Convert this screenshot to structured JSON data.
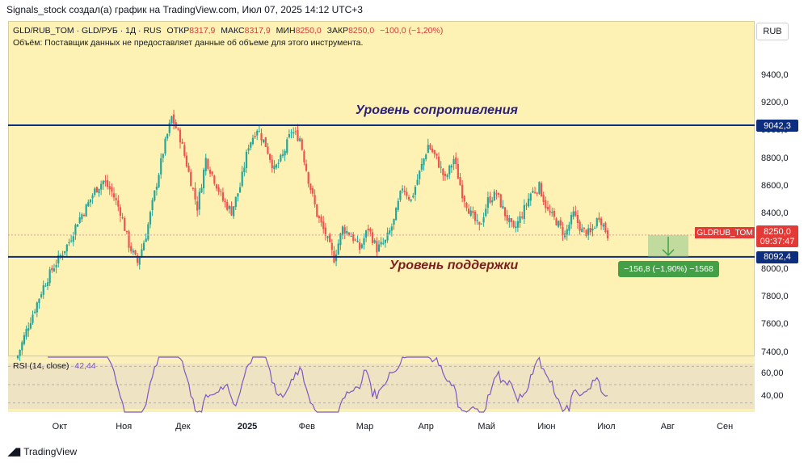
{
  "header": {
    "caption": "Signals_stock создал(а) график на TradingView.com, Июл 07, 2025 14:12 UTC+3"
  },
  "legend": {
    "symbol": "GLD/RUB_TOM · GLD/РУБ · 1Д · RUS",
    "open_label": "ОТКР",
    "open": "8317,9",
    "high_label": "МАКС",
    "high": "8317,9",
    "low_label": "МИН",
    "low": "8250,0",
    "close_label": "ЗАКР",
    "close": "8250,0",
    "change": "−100,0 (−1,20%)",
    "volume_note": "Объём: Поставщик данных не предоставляет данные об объеме для этого инструмента."
  },
  "currency_button": "RUB",
  "price_tag": {
    "symbol": "GLDRUB_TOM",
    "price": "8250,0",
    "countdown": "09:37:47"
  },
  "levels": {
    "resistance": {
      "value": 9042.3,
      "label": "9042,3",
      "annotation": "Уровень сопротивления"
    },
    "support": {
      "value": 8092.4,
      "label": "8092,4",
      "annotation": "Уровень поддержки"
    }
  },
  "measure": {
    "label": "−156,8 (−1,90%) −1568"
  },
  "rsi": {
    "label": "RSI (14, close)",
    "value": "42,44",
    "upper": 70,
    "lower": 30,
    "ticks": [
      "60,00",
      "40,00"
    ]
  },
  "footer": {
    "brand": "TradingView"
  },
  "colors": {
    "up": "#26a69a",
    "down": "#ef5350",
    "level_line": "#0d2e7f",
    "rsi_line": "#7e57c2",
    "chart_bg": "#fdf2b4"
  },
  "chart_data": {
    "type": "candlestick",
    "title": "GLD/RUB_TOM · GLD/РУБ · 1Д · RUS",
    "y_ticks": [
      {
        "value": 7400,
        "label": "7400,0"
      },
      {
        "value": 7600,
        "label": "7600,0"
      },
      {
        "value": 7800,
        "label": "7800,0"
      },
      {
        "value": 8000,
        "label": "8000,0"
      },
      {
        "value": 8200,
        "label": "8200,0"
      },
      {
        "value": 8400,
        "label": "8400,0"
      },
      {
        "value": 8600,
        "label": "8600,0"
      },
      {
        "value": 8800,
        "label": "8800,0"
      },
      {
        "value": 9000,
        "label": "9000,0"
      },
      {
        "value": 9200,
        "label": "9200,0"
      },
      {
        "value": 9400,
        "label": "9400,0"
      }
    ],
    "ylim": [
      7380,
      9620
    ],
    "x_ticks": [
      {
        "label": "Окт",
        "pos": 0.07,
        "bold": false
      },
      {
        "label": "Ноя",
        "pos": 0.155,
        "bold": false
      },
      {
        "label": "Дек",
        "pos": 0.235,
        "bold": false
      },
      {
        "label": "2025",
        "pos": 0.318,
        "bold": true
      },
      {
        "label": "Фев",
        "pos": 0.4,
        "bold": false
      },
      {
        "label": "Мар",
        "pos": 0.477,
        "bold": false
      },
      {
        "label": "Апр",
        "pos": 0.56,
        "bold": false
      },
      {
        "label": "Май",
        "pos": 0.64,
        "bold": false
      },
      {
        "label": "Июн",
        "pos": 0.72,
        "bold": false
      },
      {
        "label": "Июл",
        "pos": 0.8,
        "bold": false
      },
      {
        "label": "Авг",
        "pos": 0.885,
        "bold": false
      },
      {
        "label": "Сен",
        "pos": 0.96,
        "bold": false
      }
    ],
    "close_path": [
      [
        0,
        7380
      ],
      [
        4,
        7560
      ],
      [
        8,
        7720
      ],
      [
        12,
        7880
      ],
      [
        16,
        8000
      ],
      [
        20,
        8100
      ],
      [
        24,
        8200
      ],
      [
        28,
        8350
      ],
      [
        32,
        8450
      ],
      [
        36,
        8570
      ],
      [
        40,
        8640
      ],
      [
        44,
        8560
      ],
      [
        48,
        8420
      ],
      [
        52,
        8180
      ],
      [
        56,
        8050
      ],
      [
        60,
        8250
      ],
      [
        64,
        8550
      ],
      [
        68,
        8850
      ],
      [
        72,
        9100
      ],
      [
        76,
        8950
      ],
      [
        80,
        8700
      ],
      [
        84,
        8450
      ],
      [
        88,
        8800
      ],
      [
        92,
        8650
      ],
      [
        96,
        8500
      ],
      [
        100,
        8420
      ],
      [
        104,
        8600
      ],
      [
        108,
        8900
      ],
      [
        112,
        9020
      ],
      [
        116,
        8900
      ],
      [
        120,
        8720
      ],
      [
        124,
        8820
      ],
      [
        128,
        9000
      ],
      [
        132,
        8950
      ],
      [
        136,
        8650
      ],
      [
        140,
        8400
      ],
      [
        144,
        8250
      ],
      [
        148,
        8080
      ],
      [
        152,
        8300
      ],
      [
        156,
        8250
      ],
      [
        160,
        8150
      ],
      [
        164,
        8300
      ],
      [
        168,
        8150
      ],
      [
        172,
        8200
      ],
      [
        176,
        8350
      ],
      [
        180,
        8600
      ],
      [
        184,
        8500
      ],
      [
        188,
        8700
      ],
      [
        192,
        8900
      ],
      [
        196,
        8800
      ],
      [
        200,
        8650
      ],
      [
        204,
        8800
      ],
      [
        208,
        8550
      ],
      [
        212,
        8400
      ],
      [
        216,
        8300
      ],
      [
        220,
        8500
      ],
      [
        224,
        8550
      ],
      [
        228,
        8400
      ],
      [
        232,
        8280
      ],
      [
        236,
        8400
      ],
      [
        240,
        8550
      ],
      [
        244,
        8600
      ],
      [
        248,
        8420
      ],
      [
        252,
        8350
      ],
      [
        256,
        8250
      ],
      [
        260,
        8400
      ],
      [
        264,
        8280
      ],
      [
        268,
        8260
      ],
      [
        272,
        8390
      ],
      [
        276,
        8250
      ]
    ]
  }
}
